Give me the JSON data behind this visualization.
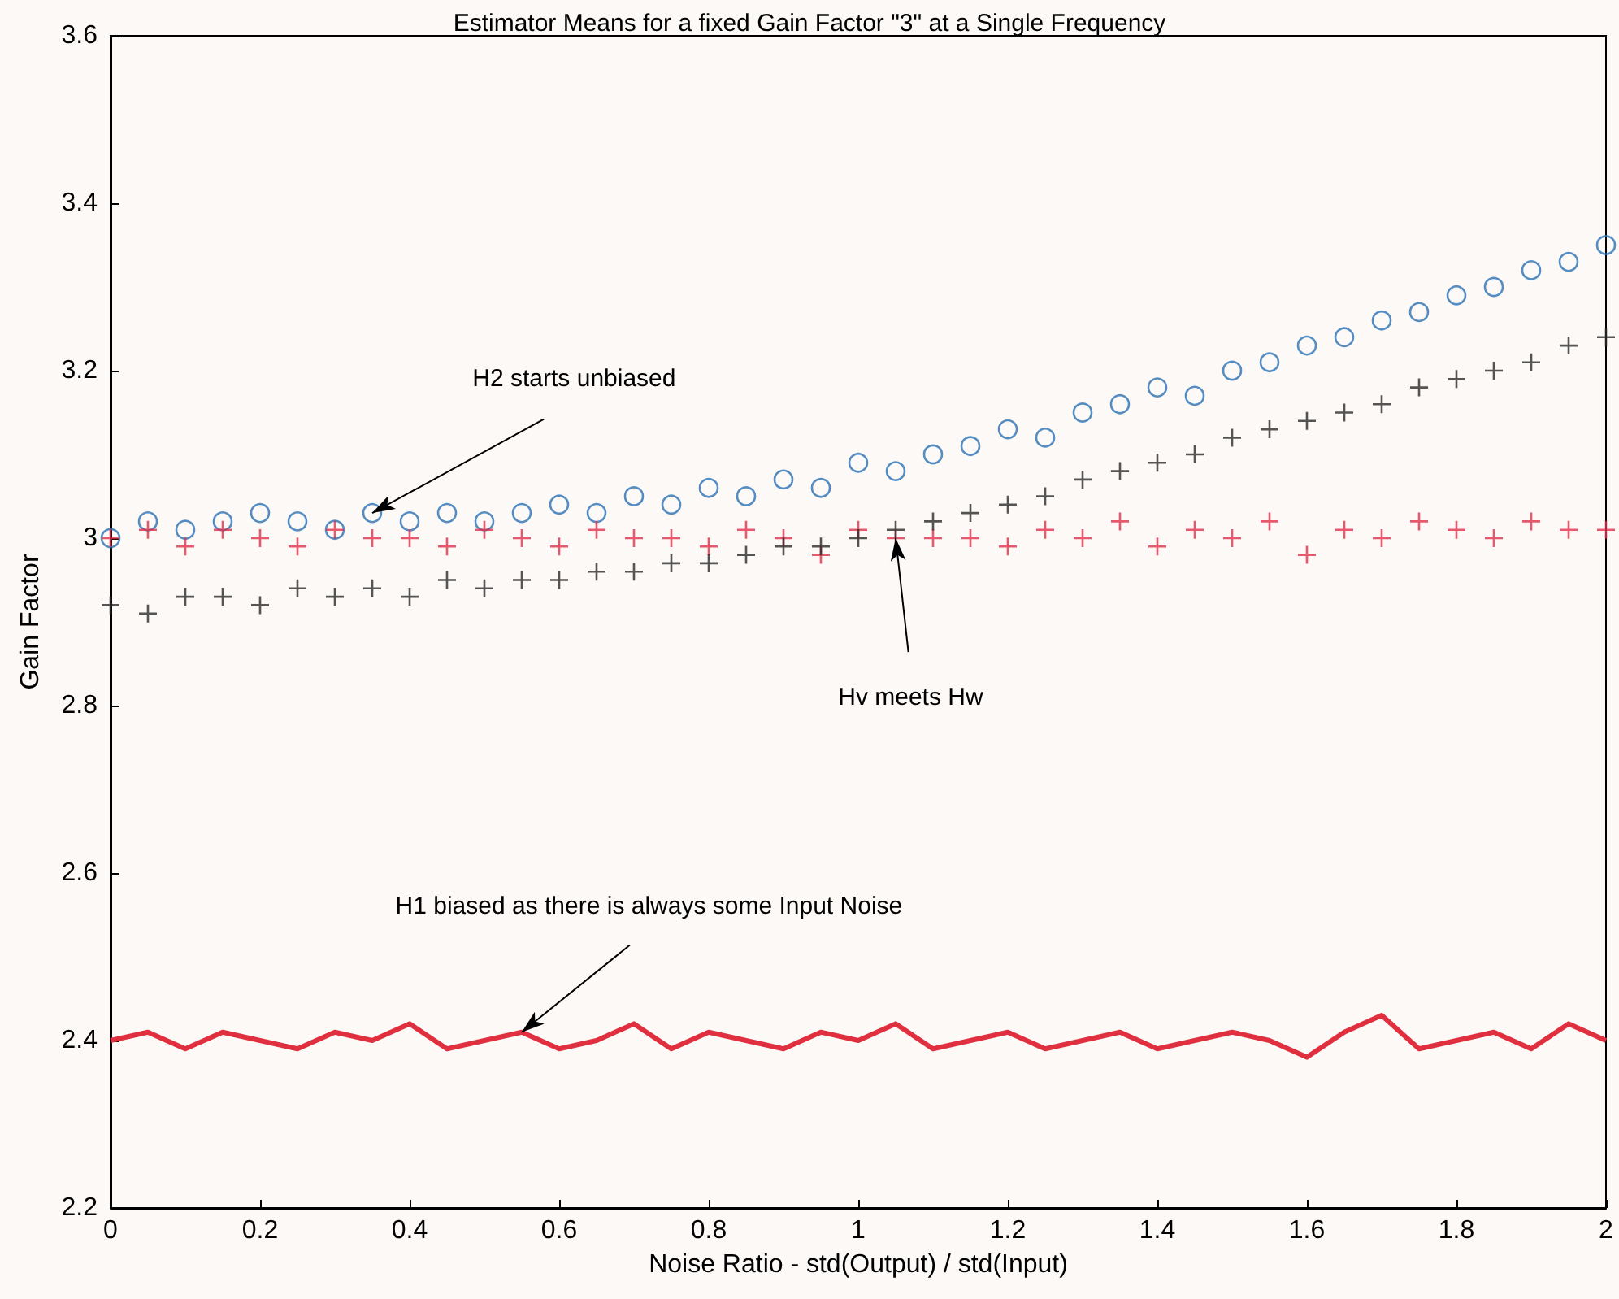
{
  "chart_data": {
    "type": "scatter",
    "title": "Estimator Means for a fixed Gain Factor \"3\" at a Single Frequency",
    "xlabel": "Noise Ratio - std(Output) / std(Input)",
    "ylabel": "Gain Factor",
    "xlim": [
      0,
      2
    ],
    "xticks": [
      0,
      0.2,
      0.4,
      0.6,
      0.8,
      1,
      1.2,
      1.4,
      1.6,
      1.8,
      2
    ],
    "ylim": [
      2.2,
      3.6
    ],
    "yticks": [
      2.2,
      2.4,
      2.6,
      2.8,
      3,
      3.2,
      3.4,
      3.6
    ],
    "grid": false,
    "x": [
      0,
      0.05,
      0.1,
      0.15,
      0.2,
      0.25,
      0.3,
      0.35,
      0.4,
      0.45,
      0.5,
      0.55,
      0.6,
      0.65,
      0.7,
      0.75,
      0.8,
      0.85,
      0.9,
      0.95,
      1,
      1.05,
      1.1,
      1.15,
      1.2,
      1.25,
      1.3,
      1.35,
      1.4,
      1.45,
      1.5,
      1.55,
      1.6,
      1.65,
      1.7,
      1.75,
      1.8,
      1.85,
      1.9,
      1.95,
      2
    ],
    "series": [
      {
        "marker": "circle",
        "color": "#2a72b5",
        "values": [
          3.0,
          3.02,
          3.01,
          3.02,
          3.03,
          3.02,
          3.01,
          3.03,
          3.02,
          3.03,
          3.02,
          3.03,
          3.04,
          3.03,
          3.05,
          3.04,
          3.06,
          3.05,
          3.07,
          3.06,
          3.09,
          3.08,
          3.1,
          3.11,
          3.13,
          3.12,
          3.15,
          3.16,
          3.18,
          3.17,
          3.2,
          3.21,
          3.23,
          3.24,
          3.26,
          3.27,
          3.29,
          3.3,
          3.32,
          3.33,
          3.35
        ]
      },
      {
        "marker": "cross",
        "color": "#e0304a",
        "values": [
          3.0,
          3.01,
          2.99,
          3.01,
          3.0,
          2.99,
          3.01,
          3.0,
          3.0,
          2.99,
          3.01,
          3.0,
          2.99,
          3.01,
          3.0,
          3.0,
          2.99,
          3.01,
          3.0,
          2.98,
          3.01,
          3.0,
          3.0,
          3.0,
          2.99,
          3.01,
          3.0,
          3.02,
          2.99,
          3.01,
          3.0,
          3.02,
          2.98,
          3.01,
          3.0,
          3.02,
          3.01,
          3.0,
          3.02,
          3.01,
          3.01
        ]
      },
      {
        "marker": "cross",
        "color": "#2a2a2a",
        "values": [
          2.92,
          2.91,
          2.93,
          2.93,
          2.92,
          2.94,
          2.93,
          2.94,
          2.93,
          2.95,
          2.94,
          2.95,
          2.95,
          2.96,
          2.96,
          2.97,
          2.97,
          2.98,
          2.99,
          2.99,
          3.0,
          3.01,
          3.02,
          3.03,
          3.04,
          3.05,
          3.07,
          3.08,
          3.09,
          3.1,
          3.12,
          3.13,
          3.14,
          3.15,
          3.16,
          3.18,
          3.19,
          3.2,
          3.21,
          3.23,
          3.24
        ]
      },
      {
        "type": "line",
        "marker": "none",
        "line_style": "solid",
        "color": "#e0303f",
        "values": [
          2.4,
          2.41,
          2.39,
          2.41,
          2.4,
          2.39,
          2.41,
          2.4,
          2.42,
          2.39,
          2.4,
          2.41,
          2.39,
          2.4,
          2.42,
          2.39,
          2.41,
          2.4,
          2.39,
          2.41,
          2.4,
          2.42,
          2.39,
          2.4,
          2.41,
          2.39,
          2.4,
          2.41,
          2.39,
          2.4,
          2.41,
          2.4,
          2.38,
          2.41,
          2.43,
          2.39,
          2.4,
          2.41,
          2.39,
          2.42,
          2.4
        ]
      }
    ],
    "annotations": [
      {
        "text": "H2 starts unbiased",
        "x": 0.35,
        "y": 3.03
      },
      {
        "text": "Hv meets Hw",
        "x": 1.05,
        "y": 3.0
      },
      {
        "text": "H1 biased as there is always some Input Noise",
        "x": 0.55,
        "y": 2.41
      }
    ]
  }
}
